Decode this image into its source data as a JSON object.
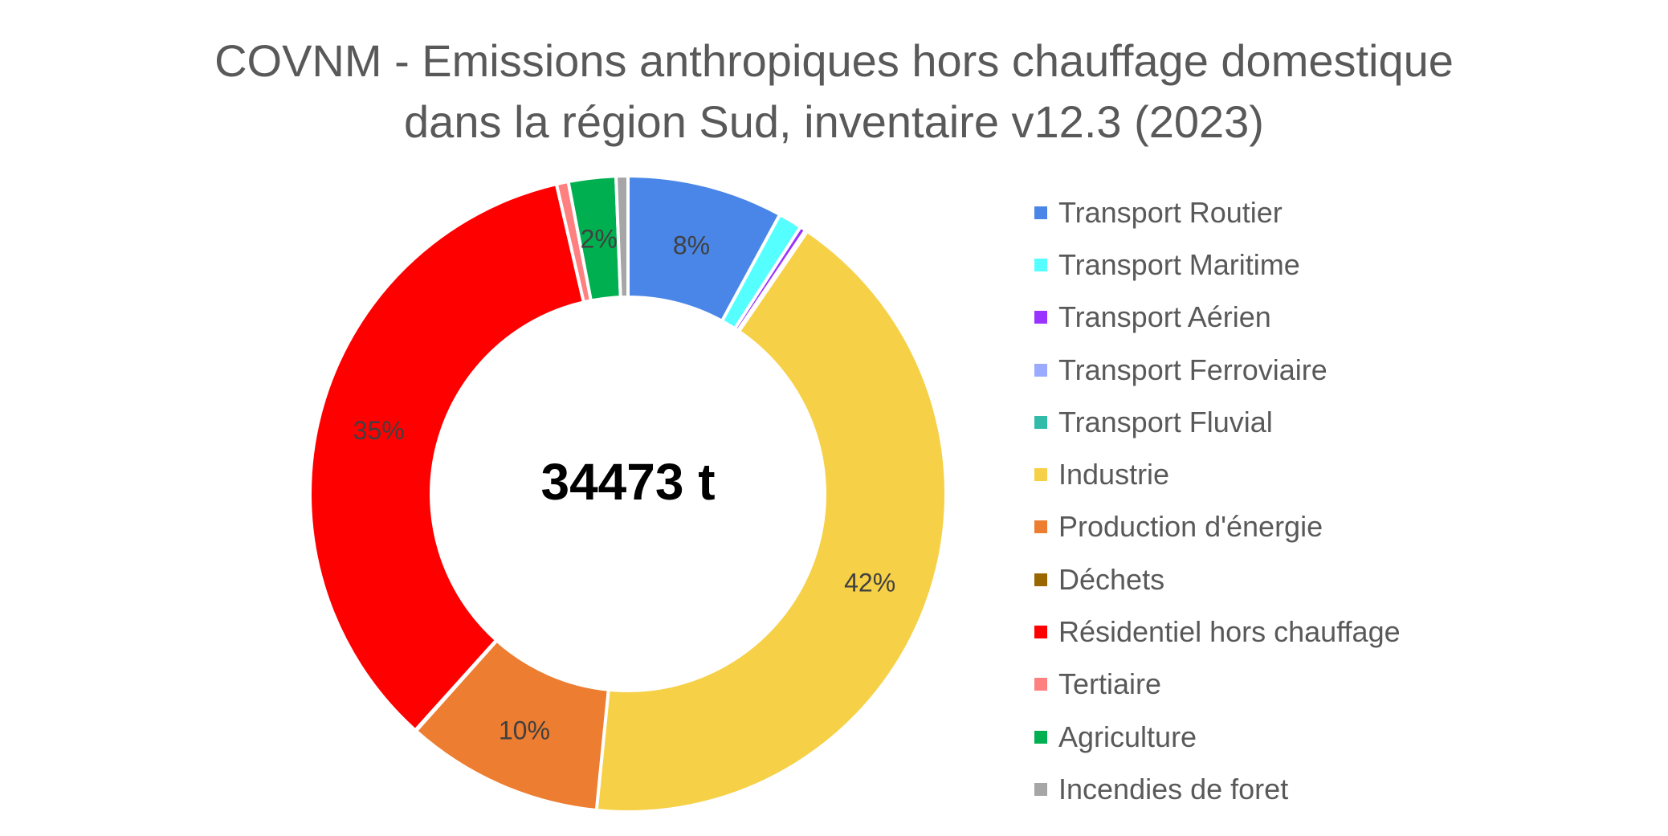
{
  "chart_data": {
    "type": "donut",
    "title": [
      "COVNM - Emissions anthropiques hors chauffage domestique",
      "dans la région Sud, inventaire v12.3 (2023)"
    ],
    "center_label": "34473 t",
    "legend_position": "right",
    "series": [
      {
        "name": "Transport Routier",
        "value": 7.9,
        "label": "8%",
        "color": "#4A86E8"
      },
      {
        "name": "Transport Maritime",
        "value": 1.2,
        "label": "",
        "color": "#55FFFF"
      },
      {
        "name": "Transport Aérien",
        "value": 0.3,
        "label": "",
        "color": "#9933FF"
      },
      {
        "name": "Transport Ferroviaire",
        "value": 0.05,
        "label": "",
        "color": "#99AAFF"
      },
      {
        "name": "Transport Fluvial",
        "value": 0.05,
        "label": "",
        "color": "#33BBAA"
      },
      {
        "name": "Industrie",
        "value": 41.9,
        "label": "42%",
        "color": "#F6D046"
      },
      {
        "name": "Production d'énergie",
        "value": 10.0,
        "label": "10%",
        "color": "#ED7D31"
      },
      {
        "name": "Déchets",
        "value": 0.05,
        "label": "",
        "color": "#996600"
      },
      {
        "name": "Résidentiel hors chauffage",
        "value": 34.6,
        "label": "35%",
        "color": "#FF0000"
      },
      {
        "name": "Tertiaire",
        "value": 0.6,
        "label": "",
        "color": "#FF8080"
      },
      {
        "name": "Agriculture",
        "value": 2.4,
        "label": "2%",
        "color": "#00B050"
      },
      {
        "name": "Incendies de foret",
        "value": 0.6,
        "label": "",
        "color": "#A6A6A6"
      }
    ]
  }
}
